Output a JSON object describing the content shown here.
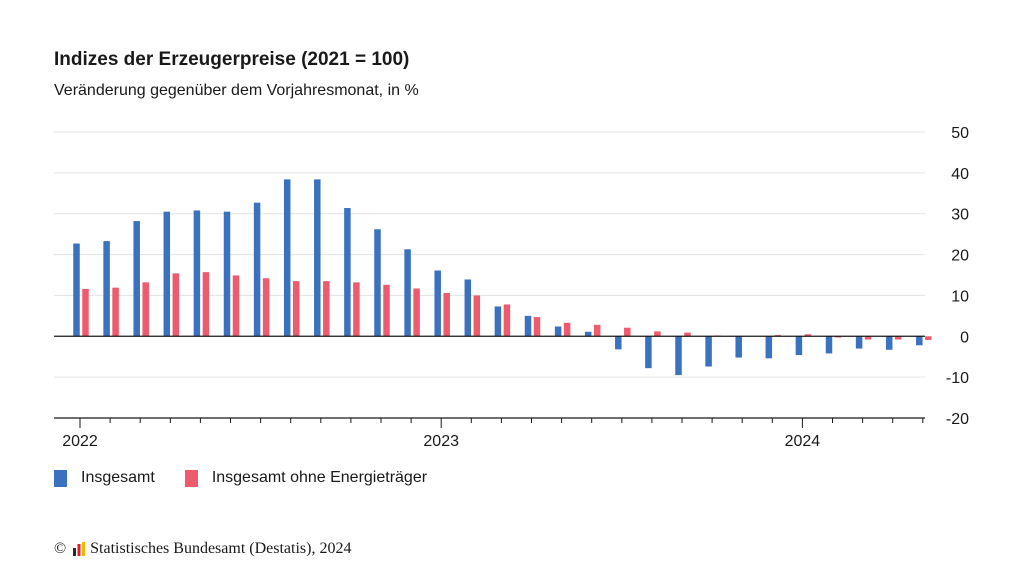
{
  "chart_data": {
    "type": "bar",
    "title": "Indizes der Erzeugerpreise (2021 = 100)",
    "subtitle": "Veränderung gegenüber dem Vorjahresmonat, in %",
    "ylim": [
      -20,
      50
    ],
    "yticks": [
      50,
      40,
      30,
      20,
      10,
      0,
      -10,
      -20
    ],
    "year_labels": [
      "2022",
      "2023",
      "2024"
    ],
    "grid": true,
    "legend_position": "bottom-left",
    "categories": [
      "2022-01",
      "2022-02",
      "2022-03",
      "2022-04",
      "2022-05",
      "2022-06",
      "2022-07",
      "2022-08",
      "2022-09",
      "2022-10",
      "2022-11",
      "2022-12",
      "2023-01",
      "2023-02",
      "2023-03",
      "2023-04",
      "2023-05",
      "2023-06",
      "2023-07",
      "2023-08",
      "2023-09",
      "2023-10",
      "2023-11",
      "2023-12",
      "2024-01",
      "2024-02",
      "2024-03",
      "2024-04",
      "2024-05"
    ],
    "series": [
      {
        "name": "Insgesamt",
        "color": "#3b72c0",
        "values": [
          22.7,
          23.3,
          28.2,
          30.5,
          30.8,
          30.5,
          32.7,
          38.4,
          38.4,
          31.4,
          26.2,
          21.3,
          16.1,
          13.9,
          7.3,
          5.0,
          2.4,
          1.1,
          -3.2,
          -7.8,
          -9.5,
          -7.4,
          -5.2,
          -5.4,
          -4.6,
          -4.2,
          -3.0,
          -3.3,
          -2.2
        ]
      },
      {
        "name": "Insgesamt ohne Energieträger",
        "color": "#ef5b6e",
        "values": [
          11.6,
          11.9,
          13.2,
          15.4,
          15.7,
          14.9,
          14.2,
          13.5,
          13.5,
          13.2,
          12.6,
          11.7,
          10.6,
          10.0,
          7.8,
          4.7,
          3.3,
          2.8,
          2.1,
          1.2,
          0.9,
          0.2,
          0.1,
          0.3,
          0.5,
          -0.3,
          -0.8,
          -0.8,
          -0.9
        ]
      }
    ]
  },
  "legend": {
    "items": [
      {
        "label": "Insgesamt",
        "color": "#3b72c0"
      },
      {
        "label": "Insgesamt ohne Energieträger",
        "color": "#ef5b6e"
      }
    ]
  },
  "footer": {
    "copyright": "©",
    "source": "Statistisches Bundesamt (Destatis), 2024"
  }
}
